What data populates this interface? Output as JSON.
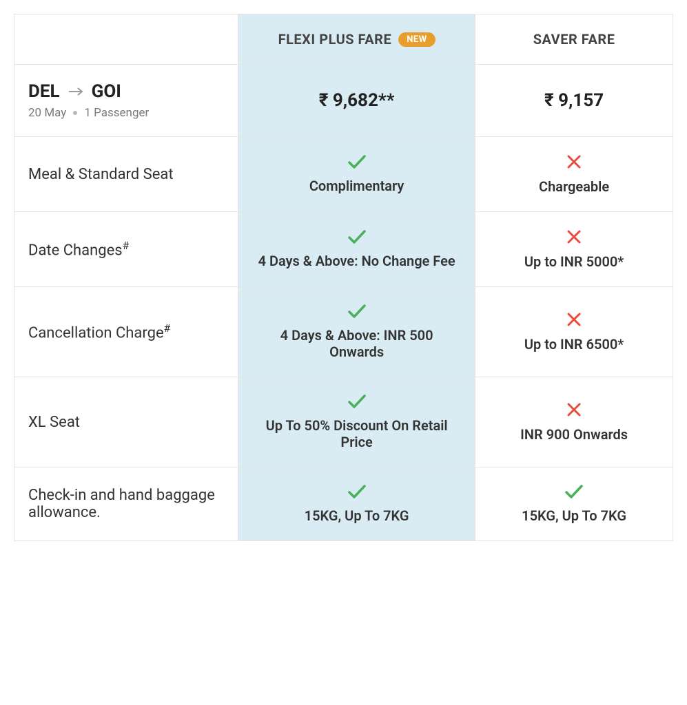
{
  "colors": {
    "highlight_bg": "#daecf3",
    "border": "#e5e5e5",
    "text_primary": "#333333",
    "text_muted": "#7b7b7b",
    "badge_bg": "#e89e2d",
    "badge_text": "#ffffff",
    "check_green": "#4bb05b",
    "cross_red": "#e74c3c",
    "arrow_gray": "#9a9a9a"
  },
  "header": {
    "flexi_label": "FLEXI PLUS FARE",
    "flexi_badge": "NEW",
    "saver_label": "SAVER FARE"
  },
  "route": {
    "origin": "DEL",
    "destination": "GOI",
    "date": "20 May",
    "pax": "1 Passenger"
  },
  "prices": {
    "flexi": "₹ 9,682**",
    "saver": "₹ 9,157"
  },
  "rows": [
    {
      "label": "Meal & Standard Seat",
      "label_sup": "",
      "flexi": {
        "icon": "check",
        "text": "Complimentary"
      },
      "saver": {
        "icon": "cross",
        "text": "Chargeable"
      }
    },
    {
      "label": "Date Changes",
      "label_sup": "#",
      "flexi": {
        "icon": "check",
        "text": "4 Days & Above: No Change Fee"
      },
      "saver": {
        "icon": "cross",
        "text": "Up to INR 5000*"
      }
    },
    {
      "label": "Cancellation Charge",
      "label_sup": "#",
      "flexi": {
        "icon": "check",
        "text": "4 Days & Above: INR 500 Onwards"
      },
      "saver": {
        "icon": "cross",
        "text": "Up to INR 6500*"
      }
    },
    {
      "label": "XL Seat",
      "label_sup": "",
      "flexi": {
        "icon": "check",
        "text": "Up To 50% Discount On Retail Price"
      },
      "saver": {
        "icon": "cross",
        "text": "INR 900 Onwards"
      }
    },
    {
      "label": "Check-in and hand baggage allowance.",
      "label_sup": "",
      "flexi": {
        "icon": "check",
        "text": "15KG, Up To 7KG"
      },
      "saver": {
        "icon": "check",
        "text": "15KG, Up To 7KG"
      }
    }
  ]
}
